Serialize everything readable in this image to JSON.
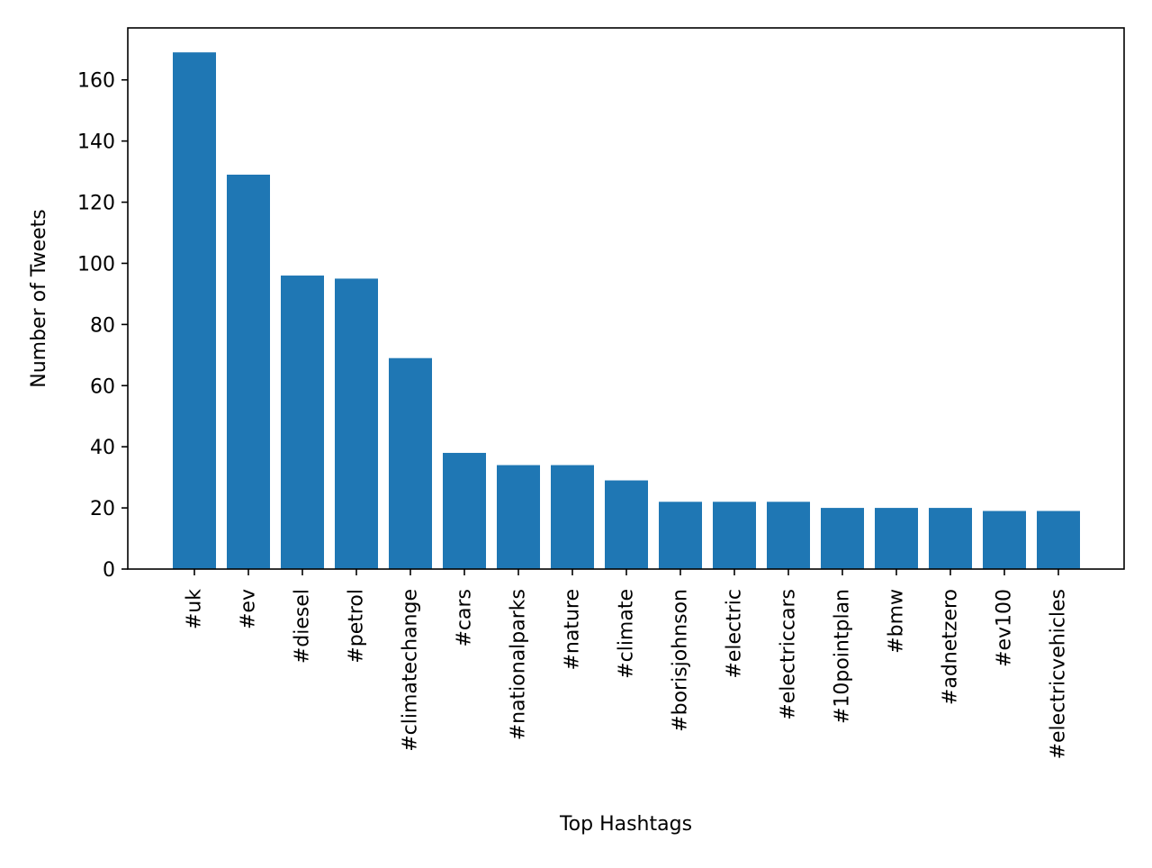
{
  "chart_data": {
    "type": "bar",
    "title": "",
    "xlabel": "Top Hashtags",
    "ylabel": "Number of Tweets",
    "categories": [
      "#uk",
      "#ev",
      "#diesel",
      "#petrol",
      "#climatechange",
      "#cars",
      "#nationalparks",
      "#nature",
      "#climate",
      "#borisjohnson",
      "#electric",
      "#electriccars",
      "#10pointplan",
      "#bmw",
      "#adnetzero",
      "#ev100",
      "#electricvehicles"
    ],
    "values": [
      169,
      129,
      96,
      95,
      69,
      38,
      34,
      34,
      29,
      22,
      22,
      22,
      20,
      20,
      20,
      19,
      19
    ],
    "ylim": [
      0,
      177
    ],
    "yticks": [
      0,
      20,
      40,
      60,
      80,
      100,
      120,
      140,
      160
    ],
    "bar_color": "#1f77b4",
    "grid": false,
    "legend": "none"
  }
}
